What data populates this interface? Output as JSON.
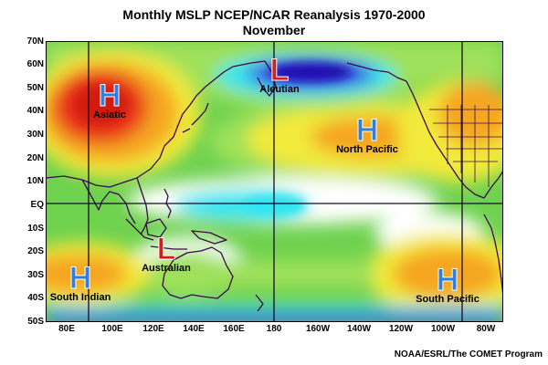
{
  "title": "Monthly MSLP NCEP/NCAR Reanalysis 1970-2000",
  "subtitle": "November",
  "credit": "NOAA/ESRL/The COMET Program",
  "lat_labels": [
    "70N",
    "60N",
    "50N",
    "40N",
    "30N",
    "20N",
    "10N",
    "EQ",
    "10S",
    "20S",
    "30S",
    "40S",
    "50S"
  ],
  "lon_labels": [
    "80E",
    "100E",
    "120E",
    "140E",
    "160E",
    "180",
    "160W",
    "140W",
    "120W",
    "100W",
    "80W"
  ],
  "pressure_systems": [
    {
      "type": "H",
      "label": "Asiatic"
    },
    {
      "type": "L",
      "label": "Aleutian"
    },
    {
      "type": "H",
      "label": "North Pacific"
    },
    {
      "type": "L",
      "label": "Australian"
    },
    {
      "type": "H",
      "label": "South Indian"
    },
    {
      "type": "H",
      "label": "South Pacific"
    }
  ],
  "colors": {
    "high": "#e8301a",
    "mid_high": "#f5a623",
    "mid": "#f2ea3a",
    "mid_low": "#9fe15a",
    "low": "#4ecb4e",
    "very_low": "#ffffff",
    "lowest": "#30e6f0",
    "trough": "#3a2be0",
    "coast": "#3a0a4a",
    "grid": "#1a0a2a",
    "h_symbol": "#2f7fe0",
    "l_symbol": "#e01818"
  }
}
